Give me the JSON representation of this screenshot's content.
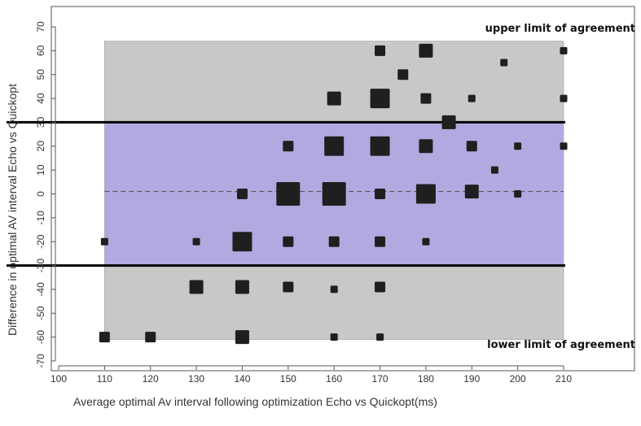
{
  "chart_data": {
    "type": "scatter",
    "title": "",
    "xlabel": "Average optimal Av interval following optimization Echo vs Quickopt(ms)",
    "ylabel": "Difference in optimal AV interval Echo vs Quickopt",
    "xlim": [
      100,
      210
    ],
    "ylim": [
      -70,
      70
    ],
    "xticks": [
      100,
      110,
      120,
      130,
      140,
      150,
      160,
      170,
      180,
      190,
      200,
      210
    ],
    "yticks": [
      70,
      60,
      50,
      40,
      30,
      20,
      10,
      0,
      -10,
      -20,
      -30,
      -40,
      -50,
      -60,
      -70
    ],
    "grid": false,
    "reference_lines": {
      "upper_limit": 30,
      "lower_limit": -30,
      "mean": 1
    },
    "outer_band": {
      "y0": -61,
      "y1": 64,
      "x0": 110,
      "x1": 210,
      "color": "#c8c8c8"
    },
    "inner_band": {
      "y0": -30,
      "y1": 30,
      "x0": 110,
      "x1": 210,
      "color": "#b3a9e0"
    },
    "annotations": {
      "upper": "upper limit of agreement",
      "lower": "lower limit of agreement"
    },
    "marker_color": "#1f1f1f",
    "points": [
      {
        "x": 110,
        "y": -20,
        "size": 1
      },
      {
        "x": 110,
        "y": -60,
        "size": 2
      },
      {
        "x": 120,
        "y": -60,
        "size": 2
      },
      {
        "x": 130,
        "y": -20,
        "size": 1
      },
      {
        "x": 130,
        "y": -39,
        "size": 3
      },
      {
        "x": 140,
        "y": 0,
        "size": 2
      },
      {
        "x": 140,
        "y": -20,
        "size": 4
      },
      {
        "x": 140,
        "y": -39,
        "size": 3
      },
      {
        "x": 140,
        "y": -60,
        "size": 3
      },
      {
        "x": 150,
        "y": 20,
        "size": 2
      },
      {
        "x": 150,
        "y": 0,
        "size": 5
      },
      {
        "x": 150,
        "y": -20,
        "size": 2
      },
      {
        "x": 150,
        "y": -39,
        "size": 2
      },
      {
        "x": 160,
        "y": 40,
        "size": 3
      },
      {
        "x": 160,
        "y": 20,
        "size": 4
      },
      {
        "x": 160,
        "y": 0,
        "size": 5
      },
      {
        "x": 160,
        "y": -20,
        "size": 2
      },
      {
        "x": 160,
        "y": -40,
        "size": 1
      },
      {
        "x": 160,
        "y": -60,
        "size": 1
      },
      {
        "x": 170,
        "y": 60,
        "size": 2
      },
      {
        "x": 170,
        "y": 40,
        "size": 4
      },
      {
        "x": 170,
        "y": 20,
        "size": 4
      },
      {
        "x": 170,
        "y": 0,
        "size": 2
      },
      {
        "x": 170,
        "y": -20,
        "size": 2
      },
      {
        "x": 170,
        "y": -39,
        "size": 2
      },
      {
        "x": 170,
        "y": -60,
        "size": 1
      },
      {
        "x": 175,
        "y": 50,
        "size": 2
      },
      {
        "x": 180,
        "y": 60,
        "size": 3
      },
      {
        "x": 180,
        "y": 40,
        "size": 2
      },
      {
        "x": 180,
        "y": 20,
        "size": 3
      },
      {
        "x": 180,
        "y": 0,
        "size": 4
      },
      {
        "x": 180,
        "y": -20,
        "size": 1
      },
      {
        "x": 185,
        "y": 30,
        "size": 3
      },
      {
        "x": 190,
        "y": 40,
        "size": 1
      },
      {
        "x": 190,
        "y": 20,
        "size": 2
      },
      {
        "x": 190,
        "y": 1,
        "size": 3
      },
      {
        "x": 195,
        "y": 10,
        "size": 1
      },
      {
        "x": 197,
        "y": 55,
        "size": 1
      },
      {
        "x": 200,
        "y": 20,
        "size": 1
      },
      {
        "x": 200,
        "y": 0,
        "size": 1
      },
      {
        "x": 210,
        "y": 60,
        "size": 1
      },
      {
        "x": 210,
        "y": 40,
        "size": 1
      },
      {
        "x": 210,
        "y": 20,
        "size": 1
      }
    ]
  }
}
